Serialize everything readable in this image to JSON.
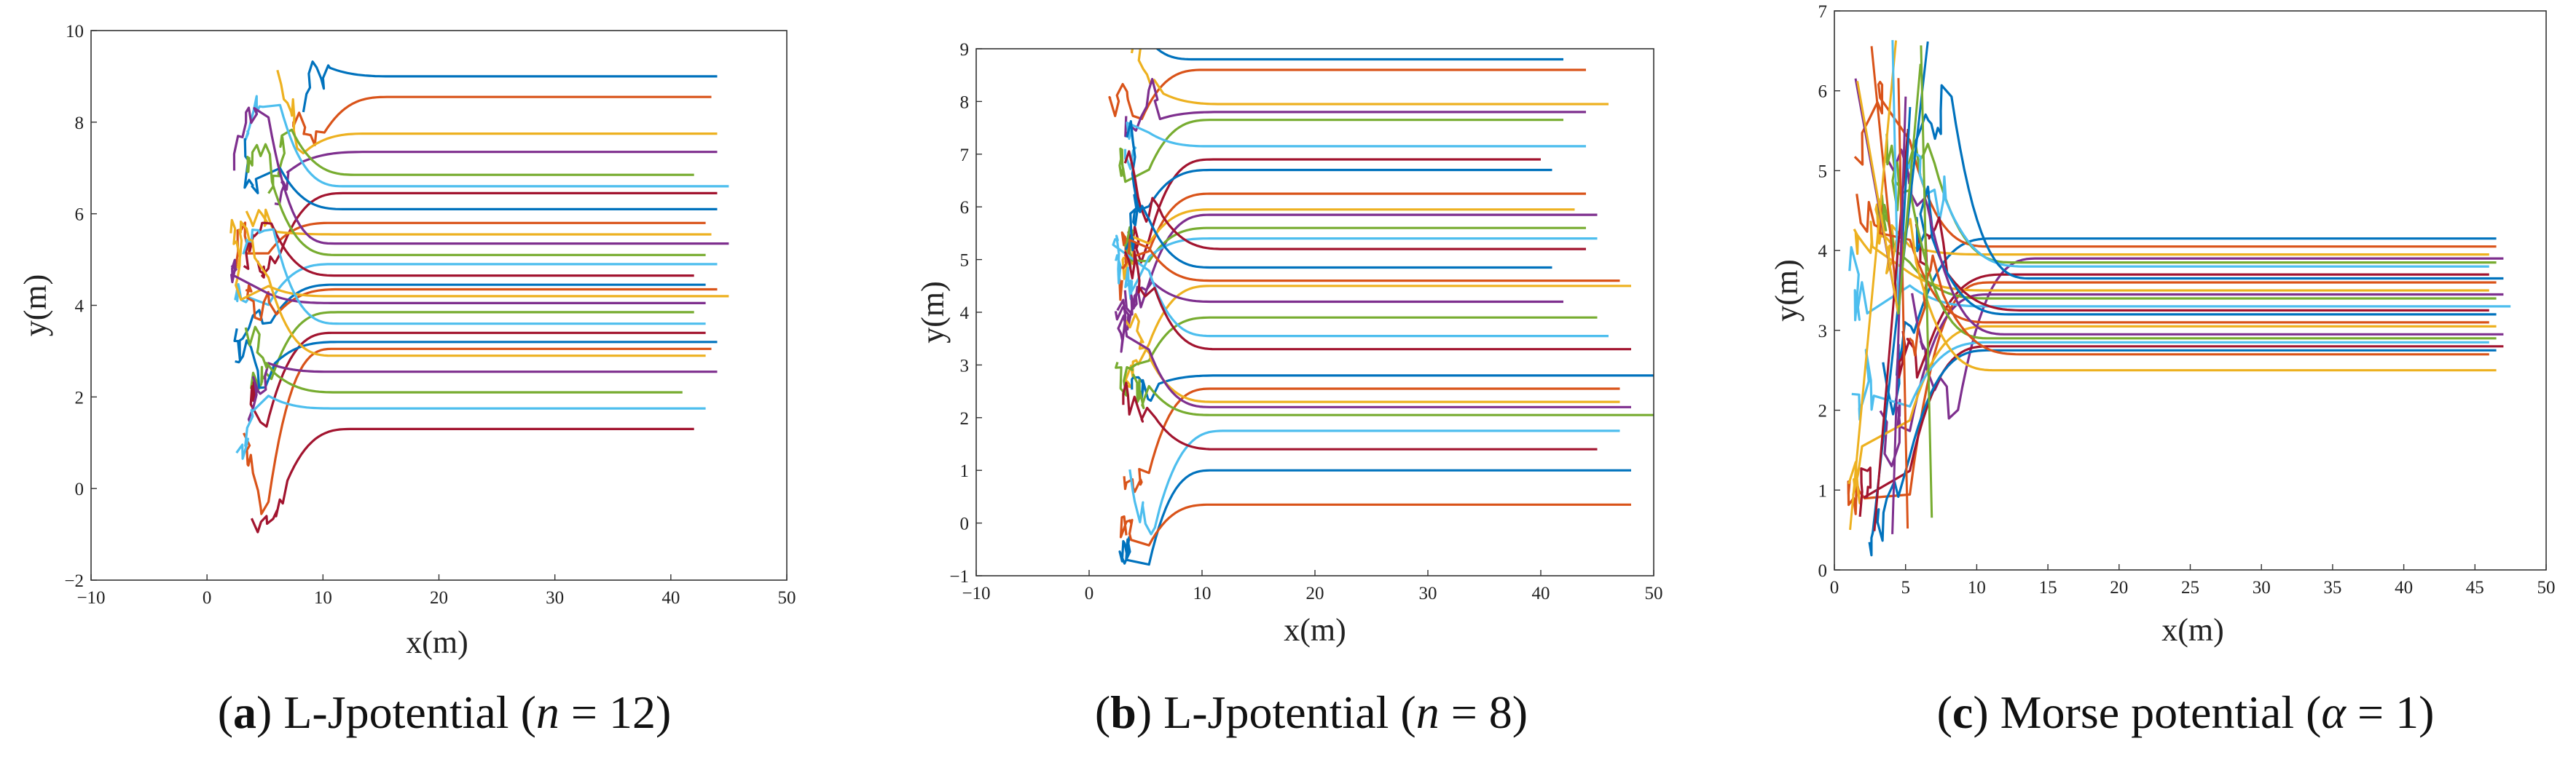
{
  "palette": [
    "#0072BD",
    "#D95319",
    "#EDB120",
    "#7E2F8E",
    "#77AC30",
    "#4DBEEE",
    "#A2142F"
  ],
  "chart_data": [
    {
      "type": "line",
      "caption": {
        "prefix": "(",
        "letter": "a",
        "text": ") L-Jpotential (",
        "var": "n",
        "rest": " = 12)"
      },
      "xlabel": "x(m)",
      "ylabel": "y(m)",
      "xlim": [
        -10,
        50
      ],
      "ylim": [
        -2,
        10
      ],
      "xticks": [
        -10,
        0,
        10,
        20,
        30,
        40,
        50
      ],
      "yticks": [
        -2,
        0,
        2,
        4,
        6,
        8,
        10
      ],
      "grid": false,
      "series_summary": {
        "count": 40,
        "start_x_range": [
          0,
          8
        ],
        "y_range": [
          -0.9,
          9.0
        ],
        "final_x_range": [
          40,
          45
        ]
      },
      "series": [
        {
          "x0": 10,
          "y_end": 9.0,
          "x_end": 44
        },
        {
          "x0": 9,
          "y_end": 8.55,
          "x_end": 43.5
        },
        {
          "x0": 8,
          "y_end": 7.75,
          "x_end": 44
        },
        {
          "x0": 8,
          "y_end": 7.35,
          "x_end": 44
        },
        {
          "x0": 7,
          "y_end": 6.85,
          "x_end": 42
        },
        {
          "x0": 6,
          "y_end": 6.6,
          "x_end": 45
        },
        {
          "x0": 6,
          "y_end": 6.45,
          "x_end": 44
        },
        {
          "x0": 6,
          "y_end": 6.1,
          "x_end": 44
        },
        {
          "x0": 5,
          "y_end": 5.8,
          "x_end": 43
        },
        {
          "x0": 5,
          "y_end": 5.55,
          "x_end": 43.5
        },
        {
          "x0": 5,
          "y_end": 5.35,
          "x_end": 45
        },
        {
          "x0": 5,
          "y_end": 5.1,
          "x_end": 43
        },
        {
          "x0": 5,
          "y_end": 4.9,
          "x_end": 44
        },
        {
          "x0": 5,
          "y_end": 4.65,
          "x_end": 42
        },
        {
          "x0": 5,
          "y_end": 4.45,
          "x_end": 43
        },
        {
          "x0": 5,
          "y_end": 4.35,
          "x_end": 44
        },
        {
          "x0": 5,
          "y_end": 4.2,
          "x_end": 45
        },
        {
          "x0": 5,
          "y_end": 4.05,
          "x_end": 43
        },
        {
          "x0": 5,
          "y_end": 3.85,
          "x_end": 42
        },
        {
          "x0": 5,
          "y_end": 3.6,
          "x_end": 43
        },
        {
          "x0": 5,
          "y_end": 3.4,
          "x_end": 43
        },
        {
          "x0": 5,
          "y_end": 3.2,
          "x_end": 44
        },
        {
          "x0": 5,
          "y_end": 3.05,
          "x_end": 43.5
        },
        {
          "x0": 5,
          "y_end": 2.9,
          "x_end": 43
        },
        {
          "x0": 5,
          "y_end": 2.55,
          "x_end": 44
        },
        {
          "x0": 5,
          "y_end": 2.1,
          "x_end": 41
        },
        {
          "x0": 5,
          "y_end": 1.75,
          "x_end": 43
        },
        {
          "x0": 5,
          "y_end": 1.3,
          "x_end": 42
        }
      ]
    },
    {
      "type": "line",
      "caption": {
        "prefix": "(",
        "letter": "b",
        "text": ") L-Jpotential (",
        "var": "n",
        "rest": " = 8)"
      },
      "xlabel": "x(m)",
      "ylabel": "y(m)",
      "xlim": [
        -10,
        50
      ],
      "ylim": [
        -1,
        9
      ],
      "xticks": [
        -10,
        0,
        10,
        20,
        30,
        40,
        50
      ],
      "yticks": [
        -1,
        0,
        1,
        2,
        3,
        4,
        5,
        6,
        7,
        8,
        9
      ],
      "grid": false,
      "series_summary": {
        "count": 40,
        "start_x_range": [
          0,
          7
        ],
        "y_range": [
          -0.9,
          8.8
        ],
        "final_x_range": [
          40,
          50
        ]
      },
      "series": [
        {
          "x0": 3,
          "y_end": 8.8,
          "x_end": 42
        },
        {
          "x0": 4,
          "y_end": 8.6,
          "x_end": 44
        },
        {
          "x0": 5,
          "y_end": 7.95,
          "x_end": 46
        },
        {
          "x0": 5,
          "y_end": 7.8,
          "x_end": 44
        },
        {
          "x0": 5,
          "y_end": 7.65,
          "x_end": 42
        },
        {
          "x0": 5,
          "y_end": 7.15,
          "x_end": 44
        },
        {
          "x0": 5,
          "y_end": 6.9,
          "x_end": 40
        },
        {
          "x0": 5,
          "y_end": 6.7,
          "x_end": 41
        },
        {
          "x0": 5,
          "y_end": 6.25,
          "x_end": 44
        },
        {
          "x0": 5,
          "y_end": 5.95,
          "x_end": 43
        },
        {
          "x0": 5,
          "y_end": 5.85,
          "x_end": 45
        },
        {
          "x0": 5,
          "y_end": 5.6,
          "x_end": 44
        },
        {
          "x0": 5,
          "y_end": 5.4,
          "x_end": 45
        },
        {
          "x0": 5,
          "y_end": 5.2,
          "x_end": 44
        },
        {
          "x0": 5,
          "y_end": 4.85,
          "x_end": 41
        },
        {
          "x0": 5,
          "y_end": 4.6,
          "x_end": 47
        },
        {
          "x0": 5,
          "y_end": 4.5,
          "x_end": 48
        },
        {
          "x0": 5,
          "y_end": 4.2,
          "x_end": 42
        },
        {
          "x0": 5,
          "y_end": 3.9,
          "x_end": 45
        },
        {
          "x0": 5,
          "y_end": 3.55,
          "x_end": 46
        },
        {
          "x0": 5,
          "y_end": 3.3,
          "x_end": 48
        },
        {
          "x0": 5,
          "y_end": 2.8,
          "x_end": 50
        },
        {
          "x0": 5,
          "y_end": 2.55,
          "x_end": 47
        },
        {
          "x0": 5,
          "y_end": 2.3,
          "x_end": 47
        },
        {
          "x0": 5,
          "y_end": 2.2,
          "x_end": 48
        },
        {
          "x0": 5,
          "y_end": 2.05,
          "x_end": 50
        },
        {
          "x0": 5,
          "y_end": 1.75,
          "x_end": 47
        },
        {
          "x0": 5,
          "y_end": 1.4,
          "x_end": 45
        },
        {
          "x0": 5,
          "y_end": 1.0,
          "x_end": 48
        },
        {
          "x0": 5,
          "y_end": 0.35,
          "x_end": 48
        }
      ]
    },
    {
      "type": "line",
      "caption": {
        "prefix": "(",
        "letter": "c",
        "text": ") Morse potential (",
        "var": "α",
        "rest": " = 1)"
      },
      "xlabel": "x(m)",
      "ylabel": "y(m)",
      "xlim": [
        0,
        50
      ],
      "ylim": [
        0,
        7
      ],
      "xticks": [
        0,
        5,
        10,
        15,
        20,
        25,
        30,
        35,
        40,
        45,
        50
      ],
      "yticks": [
        0,
        1,
        2,
        3,
        4,
        5,
        6,
        7
      ],
      "grid": false,
      "series_summary": {
        "count": 40,
        "start_x_range": [
          1,
          7
        ],
        "y_range": [
          0.2,
          6.8
        ],
        "final_x_range": [
          45,
          47.5
        ]
      },
      "series": [
        {
          "x0": 5,
          "y_end": 4.15,
          "x_end": 46.5
        },
        {
          "x0": 5,
          "y_end": 4.05,
          "x_end": 46.5
        },
        {
          "x0": 5,
          "y_end": 3.95,
          "x_end": 46
        },
        {
          "x0": 5,
          "y_end": 3.9,
          "x_end": 47
        },
        {
          "x0": 5,
          "y_end": 3.85,
          "x_end": 46.5
        },
        {
          "x0": 5,
          "y_end": 3.8,
          "x_end": 46
        },
        {
          "x0": 5,
          "y_end": 3.7,
          "x_end": 46
        },
        {
          "x0": 5,
          "y_end": 3.65,
          "x_end": 47
        },
        {
          "x0": 5,
          "y_end": 3.6,
          "x_end": 46.5
        },
        {
          "x0": 5,
          "y_end": 3.5,
          "x_end": 46
        },
        {
          "x0": 5,
          "y_end": 3.45,
          "x_end": 47
        },
        {
          "x0": 5,
          "y_end": 3.4,
          "x_end": 46.5
        },
        {
          "x0": 5,
          "y_end": 3.3,
          "x_end": 47.5
        },
        {
          "x0": 5,
          "y_end": 3.25,
          "x_end": 46
        },
        {
          "x0": 5,
          "y_end": 3.2,
          "x_end": 46.5
        },
        {
          "x0": 5,
          "y_end": 3.1,
          "x_end": 46
        },
        {
          "x0": 5,
          "y_end": 3.05,
          "x_end": 46.5
        },
        {
          "x0": 5,
          "y_end": 2.95,
          "x_end": 47
        },
        {
          "x0": 5,
          "y_end": 2.9,
          "x_end": 46.5
        },
        {
          "x0": 5,
          "y_end": 2.85,
          "x_end": 46
        },
        {
          "x0": 5,
          "y_end": 2.8,
          "x_end": 47
        },
        {
          "x0": 5,
          "y_end": 2.75,
          "x_end": 46.5
        },
        {
          "x0": 5,
          "y_end": 2.7,
          "x_end": 46
        },
        {
          "x0": 5,
          "y_end": 2.5,
          "x_end": 46.5
        }
      ]
    }
  ]
}
